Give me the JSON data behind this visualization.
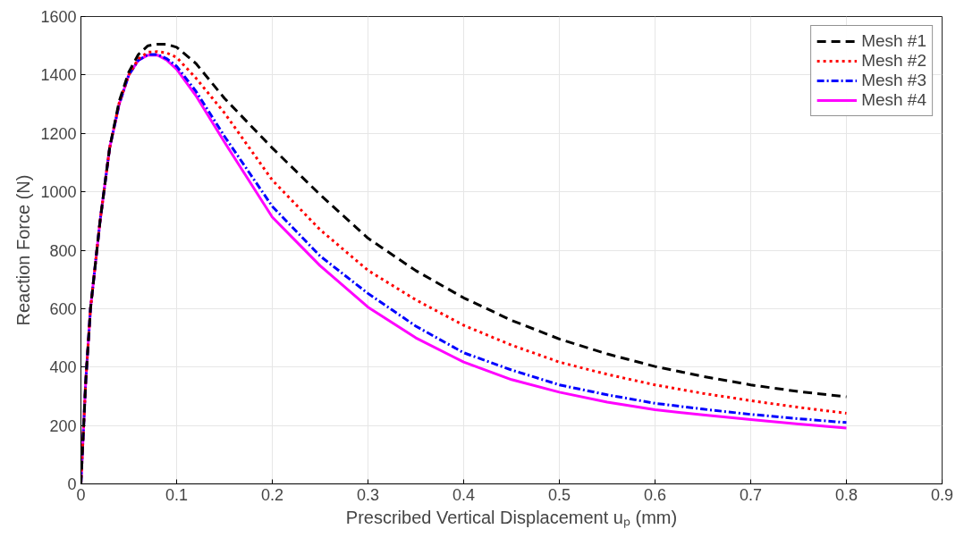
{
  "chart_data": {
    "type": "line",
    "xlabel": "Prescribed Vertical Displacement uₚ (mm)",
    "ylabel": "Reaction Force (N)",
    "xlim": [
      0,
      0.9
    ],
    "ylim": [
      0,
      1600
    ],
    "xticks": [
      0,
      0.1,
      0.2,
      0.3,
      0.4,
      0.5,
      0.6,
      0.7,
      0.8,
      0.9
    ],
    "yticks": [
      0,
      200,
      400,
      600,
      800,
      1000,
      1200,
      1400,
      1600
    ],
    "grid": true,
    "legend": "top right",
    "marker": "none",
    "x": [
      0,
      0.005,
      0.01,
      0.02,
      0.03,
      0.04,
      0.05,
      0.06,
      0.07,
      0.08,
      0.09,
      0.1,
      0.12,
      0.15,
      0.2,
      0.25,
      0.3,
      0.35,
      0.4,
      0.45,
      0.5,
      0.55,
      0.6,
      0.65,
      0.7,
      0.75,
      0.8
    ],
    "series": [
      {
        "name": "Mesh #1",
        "color": "#000000",
        "line_style": "dashed",
        "values": [
          0,
          350,
          600,
          900,
          1150,
          1310,
          1410,
          1470,
          1500,
          1505,
          1505,
          1495,
          1440,
          1320,
          1150,
          990,
          841,
          730,
          637,
          560,
          496,
          445,
          402,
          368,
          339,
          316,
          298
        ]
      },
      {
        "name": "Mesh #2",
        "color": "#ff0000",
        "line_style": "dotted",
        "values": [
          0,
          350,
          600,
          900,
          1150,
          1305,
          1400,
          1455,
          1478,
          1480,
          1475,
          1460,
          1390,
          1270,
          1040,
          870,
          731,
          630,
          543,
          475,
          417,
          375,
          339,
          310,
          285,
          262,
          242
        ]
      },
      {
        "name": "Mesh #3",
        "color": "#0000ff",
        "line_style": "dashdot",
        "values": [
          0,
          350,
          600,
          900,
          1150,
          1300,
          1400,
          1450,
          1470,
          1470,
          1455,
          1430,
          1345,
          1190,
          950,
          780,
          652,
          540,
          449,
          390,
          339,
          305,
          276,
          256,
          238,
          223,
          210
        ]
      },
      {
        "name": "Mesh #4",
        "color": "#ff00ff",
        "line_style": "solid",
        "values": [
          0,
          350,
          600,
          900,
          1150,
          1300,
          1400,
          1450,
          1468,
          1468,
          1450,
          1420,
          1330,
          1170,
          913,
          747,
          605,
          500,
          417,
          357,
          314,
          280,
          254,
          236,
          220,
          205,
          191
        ]
      }
    ]
  }
}
